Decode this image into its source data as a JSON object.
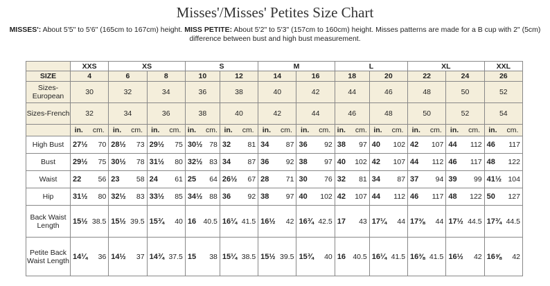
{
  "title": "Misses'/Misses' Petites Size Chart",
  "intro": {
    "misses_label": "MISSES':",
    "misses_text": " About 5'5\" to 5'6\" (165cm to 167cm) height. ",
    "petite_label": "MISS PETITE:",
    "petite_text": " About 5'2\" to 5'3\" (157cm to 160cm) height. Misses patterns are made for a B cup with 2\" (5cm) difference between bust and high bust measurement."
  },
  "groups": [
    {
      "label": "XXS",
      "span": 1
    },
    {
      "label": "XS",
      "span": 2
    },
    {
      "label": "S",
      "span": 2
    },
    {
      "label": "M",
      "span": 2
    },
    {
      "label": "L",
      "span": 2
    },
    {
      "label": "XL",
      "span": 2
    },
    {
      "label": "XXL",
      "span": 1
    }
  ],
  "size_label": "SIZE",
  "sizes": [
    "4",
    "6",
    "8",
    "10",
    "12",
    "14",
    "16",
    "18",
    "20",
    "22",
    "24",
    "26"
  ],
  "european_label": "Sizes-European",
  "european": [
    "30",
    "32",
    "34",
    "36",
    "38",
    "40",
    "42",
    "44",
    "46",
    "48",
    "50",
    "52"
  ],
  "french_label": "Sizes-French",
  "french": [
    "32",
    "34",
    "36",
    "38",
    "40",
    "42",
    "44",
    "46",
    "48",
    "50",
    "52",
    "54"
  ],
  "unit_in": "in.",
  "unit_cm": "cm.",
  "measurements": [
    {
      "label": "High Bust",
      "values": [
        [
          "27½",
          "70"
        ],
        [
          "28½",
          "73"
        ],
        [
          "29½",
          "75"
        ],
        [
          "30½",
          "78"
        ],
        [
          "32",
          "81"
        ],
        [
          "34",
          "87"
        ],
        [
          "36",
          "92"
        ],
        [
          "38",
          "97"
        ],
        [
          "40",
          "102"
        ],
        [
          "42",
          "107"
        ],
        [
          "44",
          "112"
        ],
        [
          "46",
          "117"
        ]
      ]
    },
    {
      "label": "Bust",
      "values": [
        [
          "29½",
          "75"
        ],
        [
          "30½",
          "78"
        ],
        [
          "31½",
          "80"
        ],
        [
          "32½",
          "83"
        ],
        [
          "34",
          "87"
        ],
        [
          "36",
          "92"
        ],
        [
          "38",
          "97"
        ],
        [
          "40",
          "102"
        ],
        [
          "42",
          "107"
        ],
        [
          "44",
          "112"
        ],
        [
          "46",
          "117"
        ],
        [
          "48",
          "122"
        ]
      ]
    },
    {
      "label": "Waist",
      "values": [
        [
          "22",
          "56"
        ],
        [
          "23",
          "58"
        ],
        [
          "24",
          "61"
        ],
        [
          "25",
          "64"
        ],
        [
          "26½",
          "67"
        ],
        [
          "28",
          "71"
        ],
        [
          "30",
          "76"
        ],
        [
          "32",
          "81"
        ],
        [
          "34",
          "87"
        ],
        [
          "37",
          "94"
        ],
        [
          "39",
          "99"
        ],
        [
          "41½",
          "104"
        ]
      ]
    },
    {
      "label": "Hip",
      "values": [
        [
          "31½",
          "80"
        ],
        [
          "32½",
          "83"
        ],
        [
          "33½",
          "85"
        ],
        [
          "34½",
          "88"
        ],
        [
          "36",
          "92"
        ],
        [
          "38",
          "97"
        ],
        [
          "40",
          "102"
        ],
        [
          "42",
          "107"
        ],
        [
          "44",
          "112"
        ],
        [
          "46",
          "117"
        ],
        [
          "48",
          "122"
        ],
        [
          "50",
          "127"
        ]
      ]
    },
    {
      "label": "Back Waist Length",
      "values": [
        [
          "15½",
          "38.5"
        ],
        [
          "15½",
          "39.5"
        ],
        [
          "15¾",
          "40"
        ],
        [
          "16",
          "40.5"
        ],
        [
          "16¼",
          "41.5"
        ],
        [
          "16½",
          "42"
        ],
        [
          "16¾",
          "42.5"
        ],
        [
          "17",
          "43"
        ],
        [
          "17¼",
          "44"
        ],
        [
          "17⅜",
          "44"
        ],
        [
          "17½",
          "44.5"
        ],
        [
          "17¾",
          "44.5"
        ]
      ]
    },
    {
      "label": "Petite Back Waist Length",
      "values": [
        [
          "14¼",
          "36"
        ],
        [
          "14½",
          "37"
        ],
        [
          "14¾",
          "37.5"
        ],
        [
          "15",
          "38"
        ],
        [
          "15¼",
          "38.5"
        ],
        [
          "15½",
          "39.5"
        ],
        [
          "15¾",
          "40"
        ],
        [
          "16",
          "40.5"
        ],
        [
          "16¼",
          "41.5"
        ],
        [
          "16⅜",
          "41.5"
        ],
        [
          "16½",
          "42"
        ],
        [
          "16⅝",
          "42"
        ]
      ]
    }
  ]
}
